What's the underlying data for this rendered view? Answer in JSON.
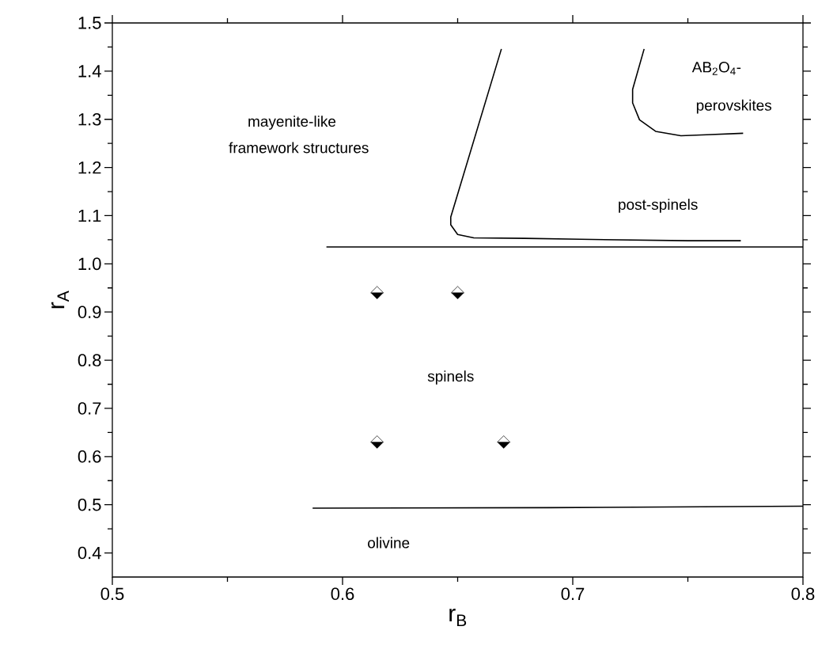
{
  "chart_data": {
    "type": "scatter",
    "xlabel": "r$_{B}$",
    "ylabel": "r$_{A}$",
    "xlim": [
      0.5,
      0.8
    ],
    "ylim": [
      0.35,
      1.5
    ],
    "xticks": [
      0.5,
      0.6,
      0.7,
      0.8
    ],
    "yticks": [
      0.4,
      0.5,
      0.6,
      0.7,
      0.8,
      0.9,
      {
        "value": 1.0,
        "label": "1.0"
      },
      1.1,
      1.2,
      1.3,
      1.4,
      1.5
    ],
    "grid": false,
    "series": [
      {
        "type": "scatter",
        "marker": "diamond",
        "color": "#000000",
        "x": [
          0.615,
          0.65,
          0.615,
          0.67
        ],
        "values": [
          0.94,
          0.94,
          0.63,
          0.63
        ]
      },
      {
        "type": "line",
        "marker": "none",
        "line_style": "solid",
        "color": "#000000",
        "x": [
          0.593,
          0.7,
          0.8
        ],
        "values": [
          1.035,
          1.035,
          1.035
        ]
      },
      {
        "type": "line",
        "marker": "none",
        "line_style": "solid",
        "color": "#000000",
        "x": [
          0.587,
          0.69,
          0.8
        ],
        "values": [
          0.493,
          0.494,
          0.497
        ]
      },
      {
        "type": "line",
        "marker": "none",
        "line_style": "solid",
        "color": "#000000",
        "x": [
          0.669,
          0.647,
          0.647,
          0.65,
          0.657,
          0.679,
          0.703,
          0.75,
          0.773
        ],
        "values": [
          1.446,
          1.097,
          1.081,
          1.061,
          1.054,
          1.053,
          1.051,
          1.048,
          1.048
        ]
      },
      {
        "type": "line",
        "marker": "none",
        "line_style": "solid",
        "color": "#000000",
        "x": [
          0.731,
          0.726,
          0.726,
          0.729,
          0.736,
          0.747,
          0.758,
          0.774
        ],
        "values": [
          1.446,
          1.362,
          1.334,
          1.299,
          1.275,
          1.266,
          1.268,
          1.271
        ]
      }
    ],
    "annotations": [
      "mayenite-like",
      "framework structures",
      "AB$_{2}$O$_{4}$-",
      "perovskites",
      "post-spinels",
      "spinels",
      "olivine"
    ]
  }
}
